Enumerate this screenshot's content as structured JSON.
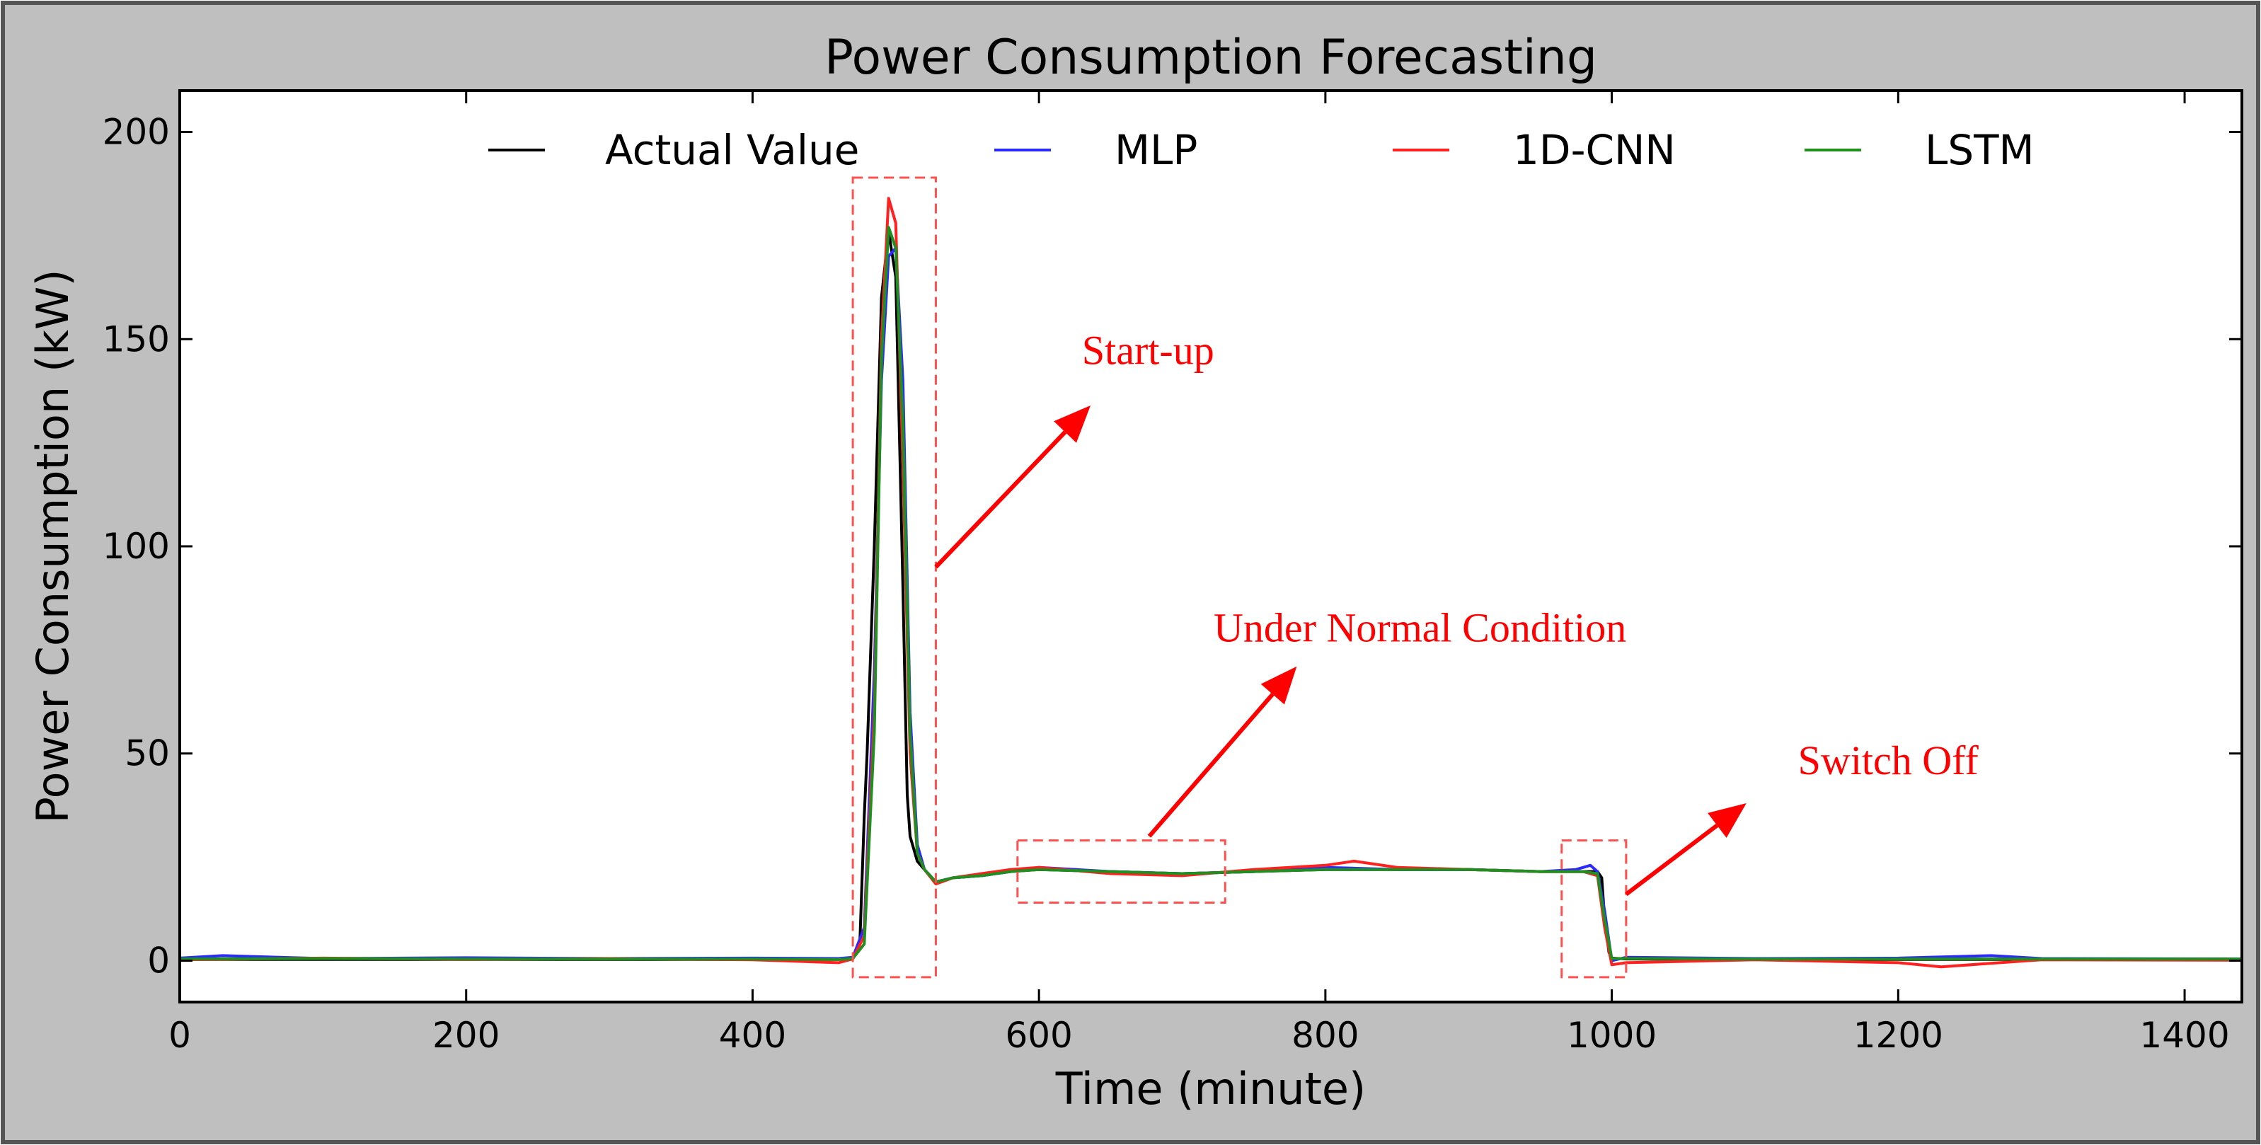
{
  "chart_data": {
    "type": "line",
    "title": "Power Consumption Forecasting",
    "xlabel": "Time (minute)",
    "ylabel": "Power Consumption (kW)",
    "xlim": [
      0,
      1440
    ],
    "ylim": [
      -10,
      210
    ],
    "xticks": [
      0,
      200,
      400,
      600,
      800,
      1000,
      1200,
      1400
    ],
    "yticks": [
      0,
      50,
      100,
      150,
      200
    ],
    "grid": false,
    "legend_position": "top-center",
    "series": [
      {
        "name": "Actual Value",
        "color": "#000000",
        "x": [
          0,
          100,
          200,
          300,
          400,
          460,
          470,
          475,
          478,
          480,
          485,
          490,
          495,
          500,
          503,
          505,
          508,
          510,
          515,
          520,
          528,
          540,
          560,
          580,
          600,
          650,
          700,
          750,
          800,
          850,
          900,
          950,
          980,
          990,
          993,
          995,
          998,
          1000,
          1010,
          1100,
          1200,
          1300,
          1440
        ],
        "y": [
          0.3,
          0.3,
          0.3,
          0.3,
          0.3,
          0.3,
          0.5,
          5,
          35,
          50,
          100,
          160,
          176,
          165,
          120,
          90,
          40,
          30,
          24,
          22,
          19,
          20,
          20.5,
          21.5,
          22,
          21.5,
          21,
          21.5,
          22,
          22,
          22,
          21.5,
          21.5,
          21.5,
          20,
          10,
          2,
          0.6,
          0.4,
          0.3,
          0.3,
          0.3,
          0.3
        ]
      },
      {
        "name": "MLP",
        "color": "#2a2aff",
        "x": [
          0,
          30,
          100,
          200,
          300,
          400,
          460,
          470,
          478,
          485,
          490,
          495,
          500,
          505,
          510,
          515,
          520,
          528,
          540,
          560,
          580,
          600,
          650,
          700,
          750,
          800,
          850,
          900,
          950,
          975,
          985,
          990,
          995,
          1000,
          1010,
          1100,
          1200,
          1265,
          1300,
          1440
        ],
        "y": [
          0.6,
          1.2,
          0.5,
          0.7,
          0.5,
          0.6,
          0.5,
          0.8,
          8,
          70,
          140,
          170,
          172,
          140,
          60,
          28,
          22,
          19,
          20,
          20.5,
          21.5,
          22.5,
          21.5,
          21,
          21.5,
          22.5,
          22,
          22,
          21.5,
          22,
          23,
          21.5,
          12,
          0,
          0.8,
          0.5,
          0.6,
          1.2,
          0.5,
          0.4
        ]
      },
      {
        "name": "1D-CNN",
        "color": "#ff2020",
        "x": [
          0,
          100,
          200,
          300,
          400,
          460,
          470,
          478,
          485,
          490,
          495,
          500,
          505,
          510,
          515,
          520,
          528,
          540,
          560,
          580,
          600,
          650,
          700,
          750,
          800,
          820,
          850,
          900,
          950,
          980,
          990,
          995,
          1000,
          1010,
          1100,
          1200,
          1230,
          1300,
          1440
        ],
        "y": [
          0.2,
          0.6,
          0.3,
          0.5,
          0.2,
          -0.5,
          0.4,
          6,
          60,
          150,
          184,
          178,
          120,
          50,
          26,
          22,
          18.5,
          20,
          21,
          22,
          22.5,
          21,
          20.5,
          22,
          23,
          24,
          22.5,
          22,
          21.5,
          21.5,
          20.5,
          8,
          -1,
          -0.5,
          0.2,
          -0.5,
          -1.5,
          0.2,
          0.1
        ]
      },
      {
        "name": "LSTM",
        "color": "#1f8f1f",
        "x": [
          0,
          100,
          200,
          300,
          400,
          460,
          470,
          478,
          485,
          490,
          495,
          500,
          505,
          510,
          515,
          520,
          528,
          540,
          560,
          580,
          600,
          650,
          700,
          750,
          800,
          850,
          900,
          950,
          980,
          990,
          995,
          1000,
          1010,
          1100,
          1200,
          1300,
          1440
        ],
        "y": [
          0.4,
          0.5,
          0.4,
          0.4,
          0.4,
          0.3,
          0.5,
          4,
          55,
          145,
          177,
          172,
          130,
          55,
          26,
          22,
          19,
          20,
          20.5,
          21.5,
          22,
          21.5,
          21,
          21.5,
          22,
          22,
          22,
          21.5,
          21.5,
          21,
          10,
          0.5,
          0.5,
          0.4,
          0.4,
          0.4,
          0.4
        ]
      }
    ],
    "highlight_boxes": [
      {
        "x0": 470,
        "x1": 528,
        "y0": -4,
        "y1": 189
      },
      {
        "x0": 585,
        "x1": 730,
        "y0": 14,
        "y1": 29
      },
      {
        "x0": 965,
        "x1": 1010,
        "y0": -4,
        "y1": 29
      }
    ],
    "annotations": [
      {
        "text": "Start-up",
        "x": 630,
        "y": 144,
        "arrow_from": [
          528,
          95
        ],
        "arrow_to": [
          636,
          134
        ]
      },
      {
        "text": "Under Normal Condition",
        "x": 722,
        "y": 77,
        "arrow_from": [
          677,
          30
        ],
        "arrow_to": [
          780,
          71
        ]
      },
      {
        "text": "Switch Off",
        "x": 1130,
        "y": 45,
        "arrow_from": [
          1010,
          16
        ],
        "arrow_to": [
          1094,
          38
        ]
      }
    ]
  }
}
